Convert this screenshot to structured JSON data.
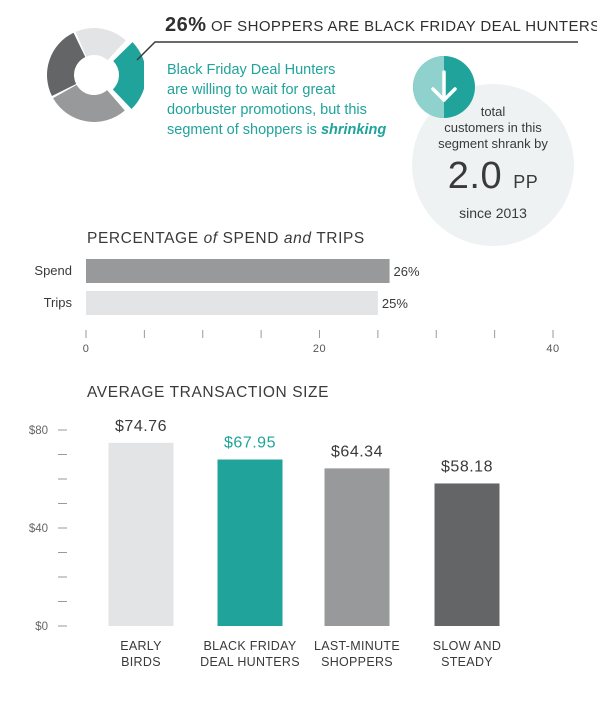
{
  "headline": {
    "percent": "26%",
    "text": "OF SHOPPERS ARE BLACK FRIDAY DEAL HUNTERS"
  },
  "description": {
    "lines": [
      "Black Friday Deal Hunters",
      "are willing to wait for great",
      "doorbuster promotions, but this",
      "segment of shoppers is "
    ],
    "emphasis": "shrinking"
  },
  "stat": {
    "line1": "total",
    "line2": "customers in this",
    "line3": "segment shrank by",
    "value": "2.0",
    "unit": "PP",
    "since": "since 2013",
    "icon": "down-arrow-icon"
  },
  "colors": {
    "teal": "#1fa39b",
    "light_gray": "#e3e4e5",
    "mid_gray": "#98999b",
    "dark_gray": "#646567",
    "bg_circle": "#eef2f3"
  },
  "chart_data": [
    {
      "type": "pie",
      "subtype": "donut",
      "values": [
        26,
        29,
        26,
        19
      ],
      "colors": [
        "#1fa39b",
        "#98999b",
        "#646567",
        "#e3e4e5"
      ],
      "highlight_index": 0
    },
    {
      "type": "bar",
      "orientation": "horizontal",
      "title_parts": [
        "PERCENTAGE ",
        "of",
        " SPEND ",
        "and",
        " TRIPS"
      ],
      "categories": [
        "Spend",
        "Trips"
      ],
      "values": [
        26,
        25
      ],
      "value_labels": [
        "26%",
        "25%"
      ],
      "colors": [
        "#98999b",
        "#e3e4e5"
      ],
      "xlim": [
        0,
        40
      ],
      "xticks": [
        0,
        20,
        40
      ],
      "xtick_labels": [
        "0",
        "20",
        "40"
      ]
    },
    {
      "type": "bar",
      "orientation": "vertical",
      "title": "AVERAGE TRANSACTION SIZE",
      "categories": [
        [
          "EARLY",
          "BIRDS"
        ],
        [
          "BLACK FRIDAY",
          "DEAL HUNTERS"
        ],
        [
          "LAST-MINUTE",
          "SHOPPERS"
        ],
        [
          "SLOW AND",
          "STEADY"
        ]
      ],
      "values": [
        74.76,
        67.95,
        64.34,
        58.18
      ],
      "value_labels": [
        "$74.76",
        "$67.95",
        "$64.34",
        "$58.18"
      ],
      "colors": [
        "#e3e4e5",
        "#1fa39b",
        "#98999b",
        "#646567"
      ],
      "label_colors": [
        "#3a3a3a",
        "#1fa39b",
        "#3a3a3a",
        "#3a3a3a"
      ],
      "ylim": [
        0,
        80
      ],
      "yticks": [
        0,
        40,
        80
      ],
      "ytick_labels": [
        "$0",
        "$40",
        "$80"
      ],
      "minor_ytick_step": 10
    }
  ]
}
